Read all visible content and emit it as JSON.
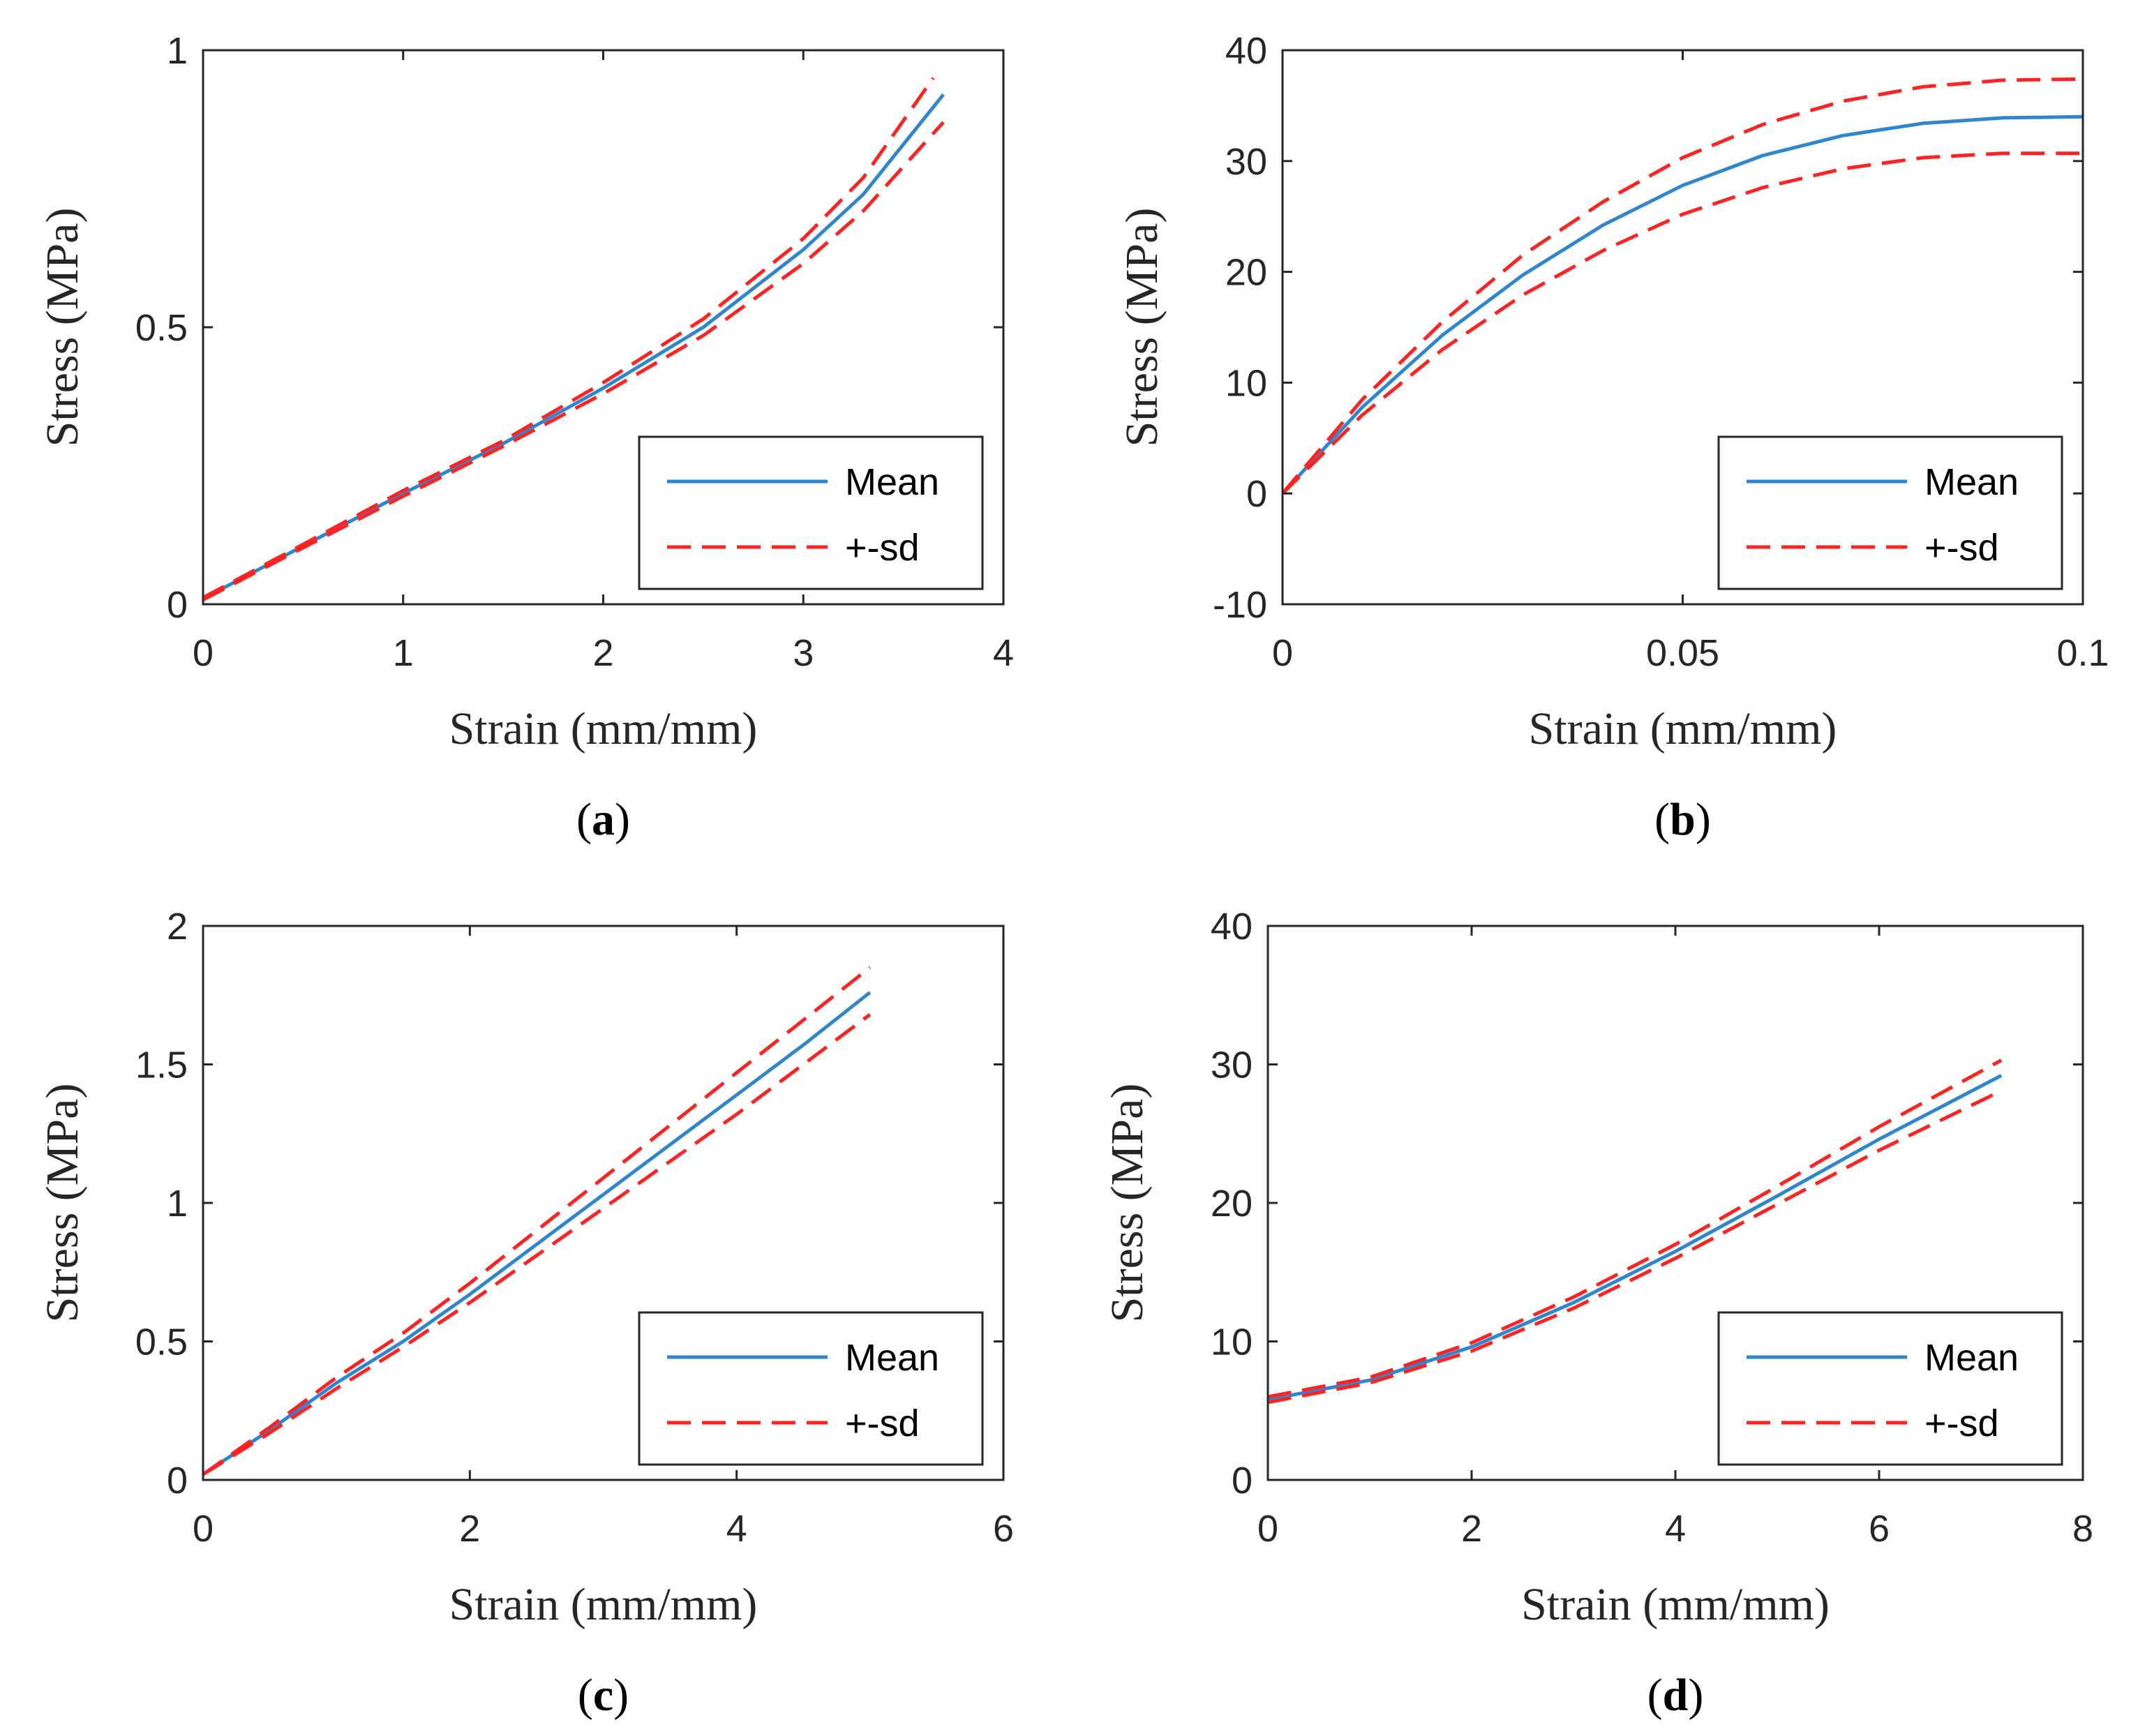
{
  "figure": {
    "colors": {
      "mean": "#2f86cf",
      "sd": "#ff2222",
      "axis": "#262626",
      "legend_border": "#262626"
    }
  },
  "chart_data": [
    {
      "type": "line",
      "panel": "a",
      "caption": {
        "open": "(",
        "letter": "a",
        "close": ")"
      },
      "xlabel": "Strain (mm/mm)",
      "ylabel": "Stress (MPa)",
      "xlim": [
        0,
        4
      ],
      "ylim": [
        0,
        1
      ],
      "xticks": [
        0,
        1,
        2,
        3,
        4
      ],
      "xtick_labels": [
        "0",
        "1",
        "2",
        "3",
        "4"
      ],
      "yticks": [
        0,
        0.5,
        1
      ],
      "ytick_labels": [
        "0",
        "0.5",
        "1"
      ],
      "grid": false,
      "legend": {
        "position": "bottom-right",
        "entries": [
          "Mean",
          "+-sd"
        ]
      },
      "series": [
        {
          "name": "Mean",
          "style": "solid",
          "color": "#2f86cf",
          "x": [
            0,
            0.5,
            1.0,
            1.5,
            2.0,
            2.5,
            3.0,
            3.3,
            3.7
          ],
          "y": [
            0.01,
            0.105,
            0.2,
            0.29,
            0.39,
            0.5,
            0.64,
            0.74,
            0.92
          ]
        },
        {
          "name": "+-sd",
          "style": "dashed",
          "color": "#ff2222",
          "x": [
            0,
            0.5,
            1.0,
            1.5,
            2.0,
            2.5,
            3.0,
            3.3,
            3.65
          ],
          "y": [
            0.012,
            0.108,
            0.205,
            0.295,
            0.4,
            0.515,
            0.66,
            0.77,
            0.95
          ]
        },
        {
          "name": "+-sd",
          "style": "dashed",
          "color": "#ff2222",
          "x": [
            0,
            0.5,
            1.0,
            1.5,
            2.0,
            2.5,
            3.0,
            3.3,
            3.7
          ],
          "y": [
            0.008,
            0.102,
            0.195,
            0.285,
            0.38,
            0.485,
            0.615,
            0.71,
            0.87
          ]
        }
      ]
    },
    {
      "type": "line",
      "panel": "b",
      "caption": {
        "open": "(",
        "letter": "b",
        "close": ")"
      },
      "xlabel": "Strain (mm/mm)",
      "ylabel": "Stress (MPa)",
      "xlim": [
        0,
        0.1
      ],
      "ylim": [
        -10,
        40
      ],
      "xticks": [
        0,
        0.05,
        0.1
      ],
      "xtick_labels": [
        "0",
        "0.05",
        "0.1"
      ],
      "yticks": [
        -10,
        0,
        10,
        20,
        30,
        40
      ],
      "ytick_labels": [
        "-10",
        "0",
        "10",
        "20",
        "30",
        "40"
      ],
      "grid": false,
      "legend": {
        "position": "bottom-right",
        "entries": [
          "Mean",
          "+-sd"
        ]
      },
      "series": [
        {
          "name": "Mean",
          "style": "solid",
          "color": "#2f86cf",
          "x": [
            0,
            0.01,
            0.02,
            0.03,
            0.04,
            0.05,
            0.06,
            0.07,
            0.08,
            0.09,
            0.1
          ],
          "y": [
            0,
            7.8,
            14.3,
            19.7,
            24.2,
            27.8,
            30.5,
            32.3,
            33.4,
            33.9,
            34.0
          ]
        },
        {
          "name": "+-sd",
          "style": "dashed",
          "color": "#ff2222",
          "x": [
            0,
            0.01,
            0.02,
            0.03,
            0.04,
            0.05,
            0.06,
            0.07,
            0.08,
            0.09,
            0.1
          ],
          "y": [
            0,
            8.5,
            15.5,
            21.5,
            26.3,
            30.3,
            33.3,
            35.4,
            36.7,
            37.3,
            37.4
          ]
        },
        {
          "name": "+-sd",
          "style": "dashed",
          "color": "#ff2222",
          "x": [
            0,
            0.01,
            0.02,
            0.03,
            0.04,
            0.05,
            0.06,
            0.07,
            0.08,
            0.09,
            0.1
          ],
          "y": [
            0,
            7.1,
            13.0,
            17.9,
            21.9,
            25.2,
            27.6,
            29.3,
            30.3,
            30.7,
            30.7
          ]
        }
      ]
    },
    {
      "type": "line",
      "panel": "c",
      "caption": {
        "open": "(",
        "letter": "c",
        "close": ")"
      },
      "xlabel": "Strain (mm/mm)",
      "ylabel": "Stress (MPa)",
      "xlim": [
        0,
        6
      ],
      "ylim": [
        0,
        2
      ],
      "xticks": [
        0,
        2,
        4,
        6
      ],
      "xtick_labels": [
        "0",
        "2",
        "4",
        "6"
      ],
      "yticks": [
        0,
        0.5,
        1,
        1.5,
        2
      ],
      "ytick_labels": [
        "0",
        "0.5",
        "1",
        "1.5",
        "2"
      ],
      "grid": false,
      "legend": {
        "position": "bottom-right",
        "entries": [
          "Mean",
          "+-sd"
        ]
      },
      "series": [
        {
          "name": "Mean",
          "style": "solid",
          "color": "#2f86cf",
          "x": [
            0,
            0.5,
            1.0,
            1.5,
            2.0,
            2.5,
            3.0,
            3.5,
            4.0,
            4.5,
            5.0
          ],
          "y": [
            0.02,
            0.18,
            0.35,
            0.5,
            0.67,
            0.85,
            1.03,
            1.21,
            1.39,
            1.57,
            1.76
          ]
        },
        {
          "name": "+-sd",
          "style": "dashed",
          "color": "#ff2222",
          "x": [
            0,
            0.5,
            1.0,
            1.5,
            2.0,
            2.5,
            3.0,
            3.5,
            4.0,
            4.5,
            5.0
          ],
          "y": [
            0.02,
            0.19,
            0.37,
            0.53,
            0.71,
            0.9,
            1.09,
            1.28,
            1.47,
            1.66,
            1.85
          ]
        },
        {
          "name": "+-sd",
          "style": "dashed",
          "color": "#ff2222",
          "x": [
            0,
            0.5,
            1.0,
            1.5,
            2.0,
            2.5,
            3.0,
            3.5,
            4.0,
            4.5,
            5.0
          ],
          "y": [
            0.02,
            0.17,
            0.33,
            0.48,
            0.64,
            0.81,
            0.98,
            1.15,
            1.32,
            1.5,
            1.68
          ]
        }
      ]
    },
    {
      "type": "line",
      "panel": "d",
      "caption": {
        "open": "(",
        "letter": "d",
        "close": ")"
      },
      "xlabel": "Strain (mm/mm)",
      "ylabel": "Stress (MPa)",
      "xlim": [
        0,
        8
      ],
      "ylim": [
        0,
        40
      ],
      "xticks": [
        0,
        2,
        4,
        6,
        8
      ],
      "xtick_labels": [
        "0",
        "2",
        "4",
        "6",
        "8"
      ],
      "yticks": [
        0,
        10,
        20,
        30,
        40
      ],
      "ytick_labels": [
        "0",
        "10",
        "20",
        "30",
        "40"
      ],
      "grid": false,
      "legend": {
        "position": "bottom-right",
        "entries": [
          "Mean",
          "+-sd"
        ]
      },
      "series": [
        {
          "name": "Mean",
          "style": "solid",
          "color": "#2f86cf",
          "x": [
            0,
            1,
            2,
            3,
            4,
            5,
            6,
            7.2
          ],
          "y": [
            5.8,
            7.2,
            9.6,
            12.8,
            16.5,
            20.5,
            24.6,
            29.2
          ]
        },
        {
          "name": "+-sd",
          "style": "dashed",
          "color": "#ff2222",
          "x": [
            0,
            1,
            2,
            3,
            4,
            5,
            6,
            7.2
          ],
          "y": [
            6.0,
            7.4,
            9.9,
            13.2,
            17.0,
            21.2,
            25.5,
            30.3
          ]
        },
        {
          "name": "+-sd",
          "style": "dashed",
          "color": "#ff2222",
          "x": [
            0,
            1,
            2,
            3,
            4,
            5,
            6,
            7.2
          ],
          "y": [
            5.6,
            7.0,
            9.3,
            12.4,
            16.0,
            19.9,
            23.8,
            28.1
          ]
        }
      ]
    }
  ]
}
